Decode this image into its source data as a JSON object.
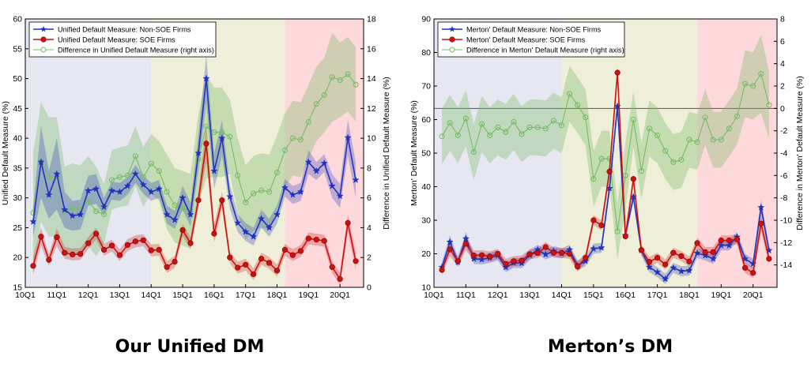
{
  "chart_data": [
    {
      "type": "line",
      "title": "Our Unified DM",
      "ylabel": "Unified Default Measure (%)",
      "y2label": "Difference in Unified Default Measure (%)",
      "ylim": [
        15,
        60
      ],
      "y2lim": [
        0,
        18
      ],
      "yticks": [
        15,
        20,
        25,
        30,
        35,
        40,
        45,
        50,
        55,
        60
      ],
      "y2ticks": [
        0,
        2,
        4,
        6,
        8,
        10,
        12,
        14,
        16,
        18
      ],
      "xlim": [
        0,
        43
      ],
      "xticks": [
        0,
        4,
        8,
        12,
        16,
        20,
        24,
        28,
        32,
        36,
        40
      ],
      "xticklabels": [
        "10Q1",
        "11Q1",
        "12Q1",
        "13Q1",
        "14Q1",
        "15Q1",
        "16Q1",
        "17Q1",
        "18Q1",
        "19Q1",
        "20Q1"
      ],
      "regions": [
        {
          "from": 0,
          "to": 16,
          "color": "#e6e7f0"
        },
        {
          "from": 16,
          "to": 33,
          "color": "#efefd9"
        },
        {
          "from": 33,
          "to": 43,
          "color": "#fdd9dc"
        }
      ],
      "legend_position": "top-left",
      "series": [
        {
          "name": "Unified Default Measure: Non-SOE Firms",
          "axis": "left",
          "color": "#2233bb",
          "marker": "star",
          "values": [
            26,
            36,
            30.5,
            34,
            28,
            27,
            27.2,
            31.2,
            31.5,
            28.5,
            31.2,
            31,
            32,
            34,
            32.2,
            31,
            31.5,
            27.2,
            26.3,
            30,
            27.2,
            37.5,
            50,
            34.5,
            40,
            30.2,
            25.8,
            24.3,
            23.5,
            26.5,
            25,
            27.2,
            31.7,
            30.5,
            31,
            36,
            34.5,
            35.8,
            32,
            30.3,
            40.1,
            33
          ],
          "band": [
            2.5,
            6,
            4,
            6,
            3,
            2.5,
            2.5,
            2.5,
            2.5,
            1.5,
            1.5,
            1.5,
            1.5,
            1.5,
            1.5,
            1.5,
            1.5,
            1.5,
            1.5,
            2,
            2,
            3,
            4,
            3,
            3,
            2,
            1.5,
            1.5,
            1.5,
            1.5,
            1.5,
            1.5,
            1.5,
            1.5,
            1.5,
            2,
            1.5,
            1.5,
            2,
            2,
            3,
            3
          ]
        },
        {
          "name": "Unified Default Measure: SOE Firms",
          "axis": "left",
          "color": "#cc1111",
          "marker": "circle",
          "values": [
            18.6,
            23.5,
            19.6,
            23.4,
            20.8,
            20.5,
            20.6,
            22.4,
            24,
            21.3,
            22,
            20.4,
            22.1,
            22.7,
            22.9,
            21.2,
            21.3,
            18.4,
            19.3,
            24.6,
            22.4,
            29.6,
            39.1,
            24,
            29.6,
            20,
            18.3,
            18.8,
            17.2,
            19.8,
            19.1,
            17.8,
            21.3,
            20.4,
            21.1,
            23.2,
            23,
            22.8,
            18.4,
            16.4,
            25.8,
            19.4
          ],
          "band": [
            1.5,
            1.5,
            1,
            1.5,
            1,
            1,
            1,
            1,
            1,
            1,
            1,
            1,
            1,
            1,
            1,
            1,
            1,
            1,
            1,
            1,
            1,
            1.5,
            3,
            1.5,
            1.5,
            1,
            1,
            1,
            1,
            1,
            1,
            1,
            1,
            1,
            1,
            1,
            1,
            1,
            1,
            1,
            1.5,
            1.5
          ]
        },
        {
          "name": "Difference in Unified Default Measure (right axis)",
          "axis": "right",
          "color": "#77bb66",
          "marker": "open-circle",
          "values": [
            5,
            8.4,
            7.4,
            7.4,
            5.1,
            5.3,
            5.2,
            5.8,
            5.1,
            4.9,
            7.2,
            7.4,
            7.5,
            8.8,
            7.4,
            8.3,
            7.8,
            6.4,
            5.5,
            5.3,
            5.1,
            8.6,
            10.8,
            10.4,
            10.4,
            10.1,
            7.5,
            5.7,
            6.3,
            6.5,
            6.4,
            7.7,
            9.2,
            10,
            9.9,
            11.1,
            12.3,
            12.9,
            14.1,
            13.9,
            14.3,
            13.6
          ],
          "band": [
            4,
            4,
            4,
            4,
            3,
            3,
            3,
            3,
            3,
            2,
            2,
            2,
            2,
            2,
            2,
            2,
            2,
            2.5,
            2.5,
            2.5,
            2.5,
            3,
            3.5,
            3,
            3,
            2.5,
            2.5,
            2.5,
            2.5,
            2.5,
            2.5,
            2.5,
            2.5,
            2.5,
            2.5,
            2.5,
            2.5,
            2.5,
            3,
            2.5,
            2.5,
            2.5
          ]
        }
      ]
    },
    {
      "type": "line",
      "title": "Merton’s DM",
      "ylabel": "Merton' Default Measure (%)",
      "y2label": "Difference in Merton' Default Measure (%)",
      "ylim": [
        10,
        90
      ],
      "y2lim": [
        -16,
        8
      ],
      "yticks": [
        10,
        20,
        30,
        40,
        50,
        60,
        70,
        80,
        90
      ],
      "y2ticks": [
        -14,
        -12,
        -10,
        -8,
        -6,
        -4,
        -2,
        0,
        2,
        4,
        6,
        8
      ],
      "xlim": [
        0,
        43
      ],
      "xticks": [
        0,
        4,
        8,
        12,
        16,
        20,
        24,
        28,
        32,
        36,
        40
      ],
      "xticklabels": [
        "10Q1",
        "11Q1",
        "12Q1",
        "13Q1",
        "14Q1",
        "15Q1",
        "16Q1",
        "17Q1",
        "18Q1",
        "19Q1",
        "20Q1"
      ],
      "regions": [
        {
          "from": 0,
          "to": 16,
          "color": "#e6e7f0"
        },
        {
          "from": 16,
          "to": 33,
          "color": "#efefd9"
        },
        {
          "from": 33,
          "to": 43,
          "color": "#fdd9dc"
        }
      ],
      "hline_right_axis": 0,
      "legend_position": "top-left",
      "series": [
        {
          "name": "Merton' Default Measure: Non-SOE Firms",
          "axis": "left",
          "color": "#2233bb",
          "marker": "star",
          "values": [
            16,
            23.5,
            17.5,
            24.5,
            18.5,
            18.3,
            18.8,
            19.5,
            16,
            17.3,
            17.2,
            19.6,
            21.2,
            19.8,
            20.8,
            20.1,
            21.2,
            16.5,
            17.8,
            21.5,
            21.8,
            39.5,
            64,
            25.5,
            37,
            21,
            16,
            14.5,
            12.5,
            15.8,
            14.8,
            15,
            20.2,
            19.5,
            18.5,
            22.5,
            22.5,
            25,
            18.5,
            17,
            33.8,
            21
          ],
          "band": [
            1.5,
            2,
            1.5,
            2,
            1.5,
            1.5,
            1.5,
            1.5,
            1.5,
            1.5,
            1.5,
            1.5,
            1.5,
            1.5,
            1.5,
            1.5,
            1.5,
            1.5,
            1.5,
            1.5,
            1.5,
            2,
            2,
            1.5,
            1.5,
            1.5,
            1.5,
            1.5,
            1.5,
            1.5,
            1.5,
            1.5,
            1.5,
            1.5,
            1.5,
            1.5,
            1.5,
            1.5,
            1.5,
            1.5,
            2.5,
            1.5
          ]
        },
        {
          "name": "Merton' Default Measure: SOE Firms",
          "axis": "left",
          "color": "#cc1111",
          "marker": "circle",
          "values": [
            15.2,
            21.3,
            17.8,
            23,
            19.5,
            19.6,
            19.2,
            20,
            17,
            17.8,
            18,
            19.9,
            20.2,
            22,
            20.3,
            20.3,
            20,
            16.2,
            18.8,
            30,
            28.5,
            44.5,
            74,
            25.2,
            42.3,
            21.1,
            17.6,
            18.8,
            16.8,
            20.3,
            19.3,
            17.7,
            23.2,
            20.5,
            20.5,
            24,
            24,
            24.3,
            15.8,
            14.3,
            29,
            18.5
          ],
          "band": [
            1.5,
            2,
            1.5,
            2,
            1.5,
            1.5,
            1.5,
            1.5,
            1.5,
            1.5,
            1.5,
            1.5,
            1.5,
            1.5,
            1.5,
            1.5,
            1.5,
            1.5,
            1.5,
            1.5,
            1.5,
            2,
            2,
            1.5,
            1.5,
            1.5,
            1.5,
            1.5,
            1.5,
            1.5,
            1.5,
            1.5,
            1.5,
            1.5,
            1.5,
            1.5,
            1.5,
            1.5,
            1.5,
            1.5,
            2.5,
            1.5
          ]
        },
        {
          "name": "Difference in Merton' Default Measure (right axis)",
          "axis": "right",
          "color": "#77bb66",
          "marker": "open-circle",
          "values": [
            -2.5,
            -1.3,
            -2.4,
            -0.9,
            -3.9,
            -1.4,
            -2.4,
            -1.7,
            -2.1,
            -1.2,
            -2.3,
            -1.7,
            -1.7,
            -1.8,
            -1.1,
            -1.5,
            1.3,
            0.3,
            -0.8,
            -6.3,
            -4.5,
            -4.5,
            -11,
            -6,
            -1,
            -5.6,
            -1.8,
            -2.4,
            -3.8,
            -4.8,
            -4.6,
            -2.8,
            -3.0,
            -0.8,
            -2.8,
            -2.8,
            -1.8,
            -0.7,
            2.2,
            2.0,
            3.1,
            0.3
          ],
          "band": [
            2.5,
            2.5,
            2.5,
            2.5,
            2.5,
            2.5,
            2.5,
            2.5,
            2.5,
            2.5,
            2.5,
            2.5,
            2.5,
            2.5,
            2.5,
            2.5,
            2.5,
            2.5,
            2.5,
            2.5,
            2.5,
            2.5,
            2.5,
            3,
            2.5,
            2.5,
            2.5,
            2.5,
            2.5,
            2.5,
            2.5,
            2.5,
            2.5,
            2.5,
            2.5,
            2.5,
            2.5,
            2.5,
            3,
            3,
            3.5,
            3
          ]
        }
      ]
    }
  ]
}
